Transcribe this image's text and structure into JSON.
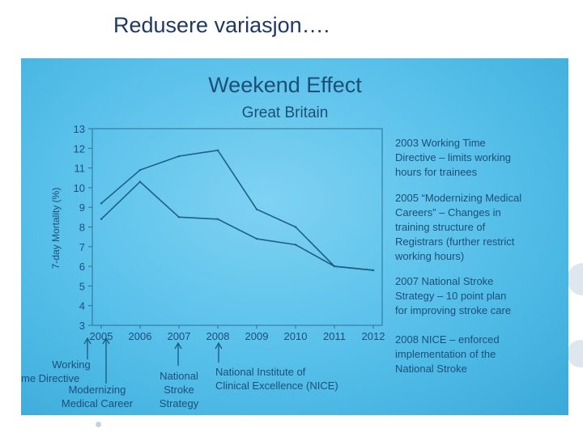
{
  "slide": {
    "title": "Redusere variasjon…."
  },
  "chart_data": {
    "type": "line",
    "title": "Weekend Effect",
    "subtitle": "Great Britain",
    "ylabel": "7-day Mortality (%)",
    "xlabel": "",
    "categories": [
      "2005",
      "2006",
      "2007",
      "2008",
      "2009",
      "2010",
      "2011",
      "2012"
    ],
    "ylim": [
      3,
      13
    ],
    "yticks": [
      "13",
      "12",
      "11",
      "10",
      "9",
      "8",
      "7",
      "6",
      "5",
      "4",
      "3"
    ],
    "grid": false,
    "series": [
      {
        "values": [
          9.2,
          10.9,
          11.6,
          11.9,
          8.9,
          8.0,
          6.0,
          5.8
        ]
      },
      {
        "values": [
          8.4,
          10.3,
          8.5,
          8.4,
          7.4,
          7.1,
          6.0,
          5.8
        ]
      }
    ],
    "notes": [
      [
        "2003 Working Time",
        "Directive – limits working",
        "hours for trainees"
      ],
      [
        "2005 “Modernizing Medical",
        "Careers” – Changes in",
        "training structure of",
        "Registrars (further restrict",
        "working hours)"
      ],
      [
        "2007 National Stroke",
        "Strategy – 10 point plan",
        "for improving stroke care"
      ],
      [
        "2008 NICE – enforced",
        "implementation of the",
        "National Stroke"
      ]
    ],
    "annotations": [
      {
        "year": "2005",
        "lines": [
          "Working",
          "me Directive"
        ]
      },
      {
        "year": "2005",
        "lines": [
          "Modernizing",
          "Medical Career"
        ]
      },
      {
        "year": "2007",
        "lines": [
          "National",
          "Stroke",
          "Strategy"
        ]
      },
      {
        "year": "2008",
        "lines": [
          "National Institute of",
          "Clinical Excellence (NICE)"
        ]
      }
    ],
    "colors": {
      "line": "#1d5f86",
      "text": "#1c4f78",
      "axis": "#2d6e96"
    }
  }
}
